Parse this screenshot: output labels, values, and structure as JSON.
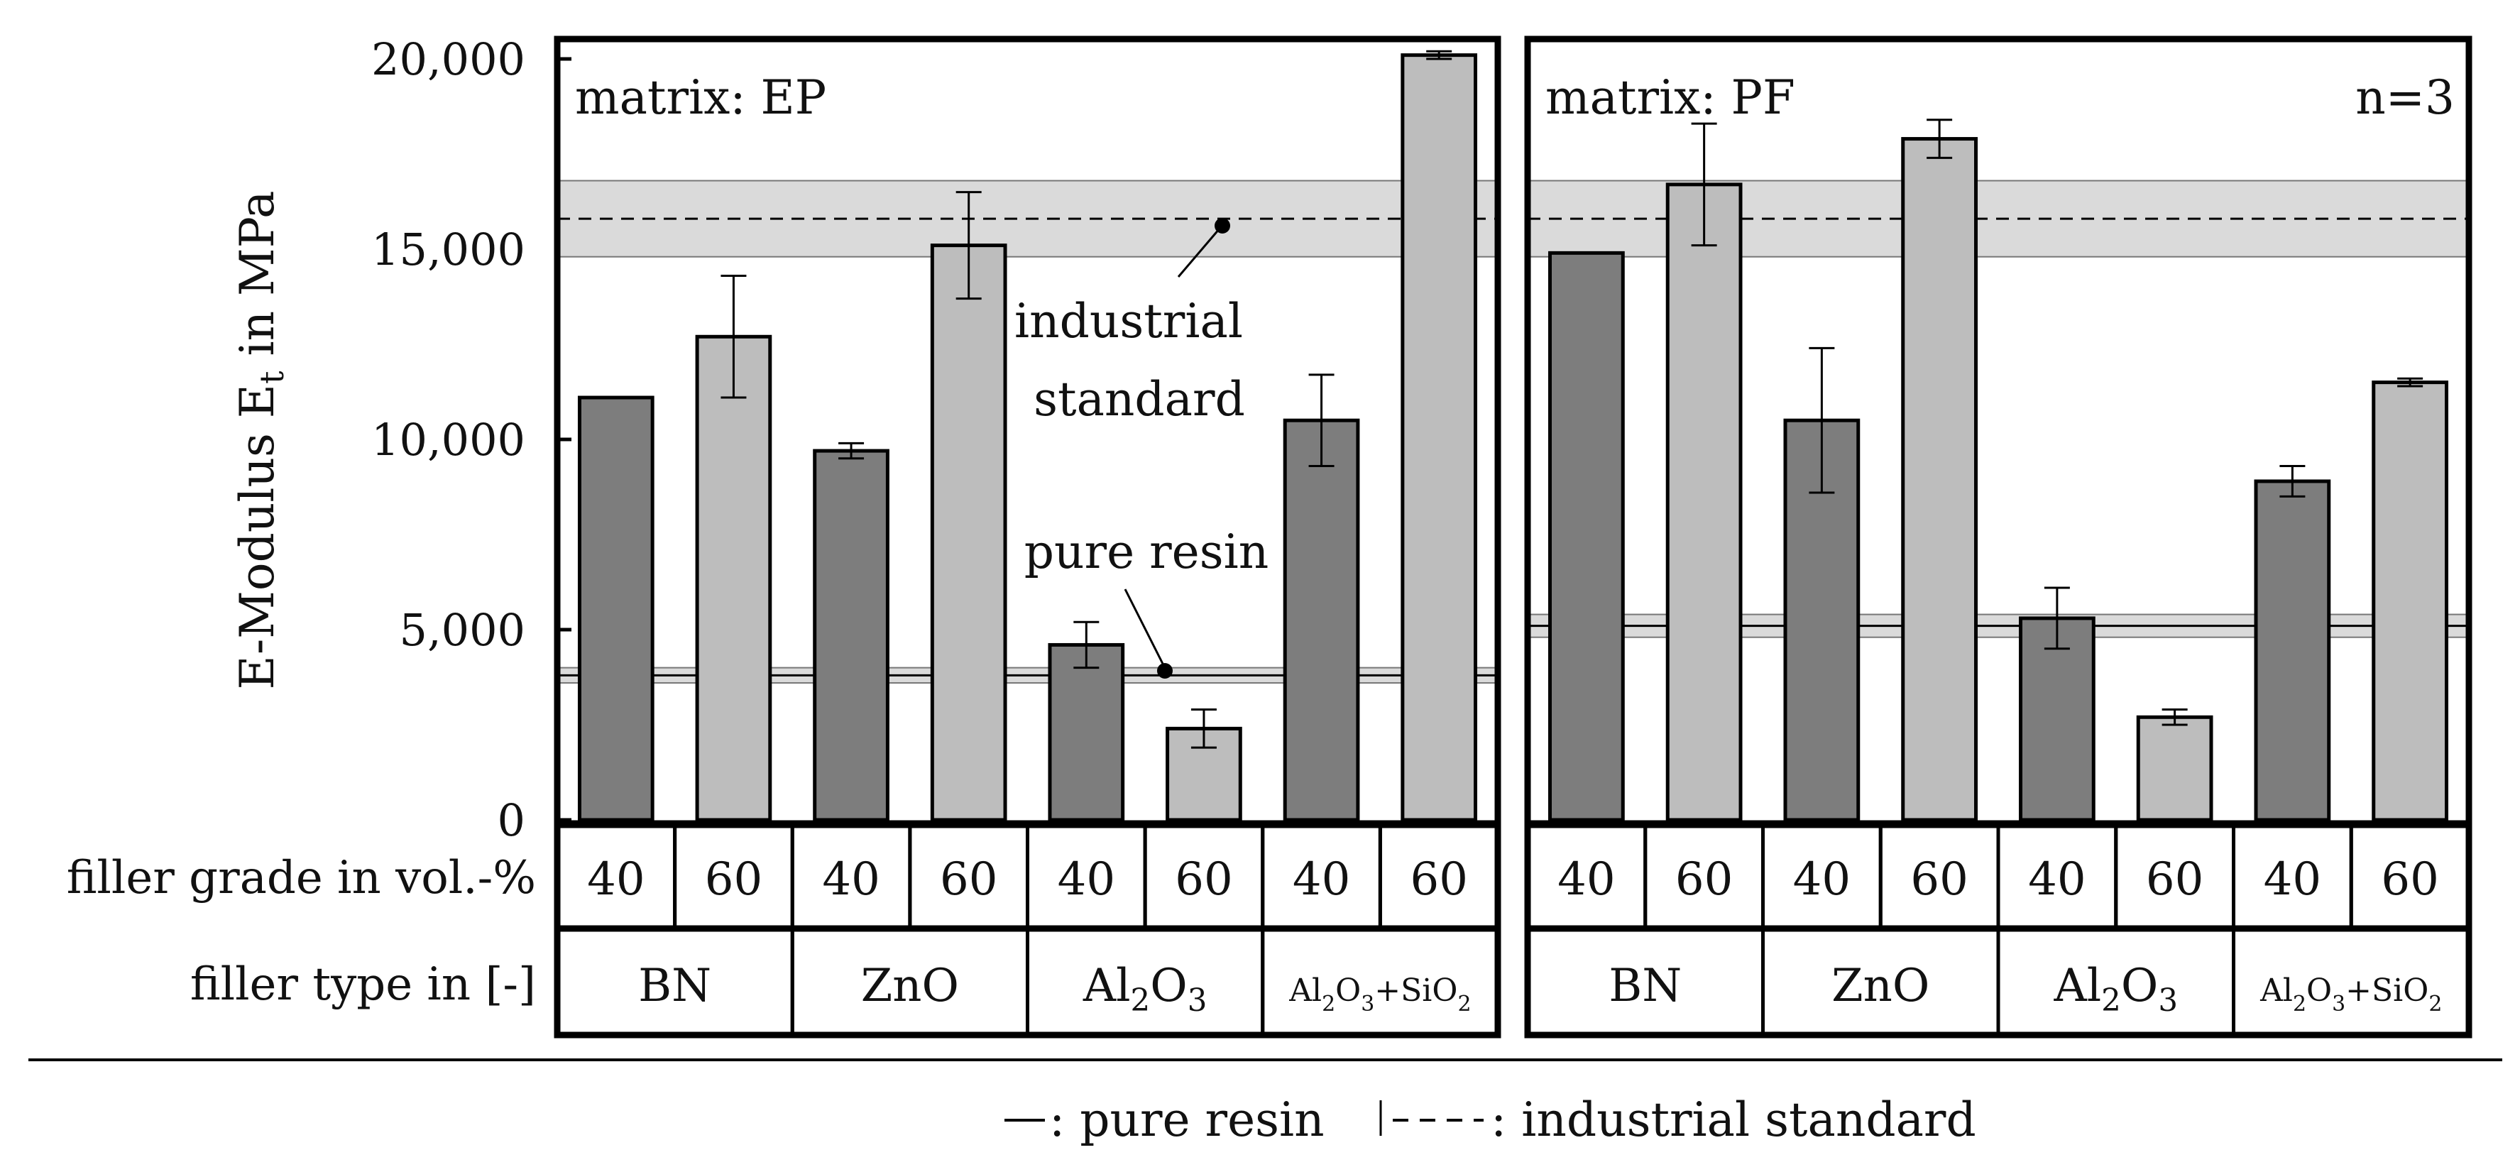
{
  "chart_data": {
    "type": "bar",
    "ylabel": "E-Modulus E",
    "ylabel_sub": "t",
    "ylabel_tail": " in MPa",
    "ylim": [
      0,
      20000
    ],
    "yticks": [
      "0",
      "5,000",
      "10,000",
      "15,000",
      "20,000"
    ],
    "ytick_values": [
      0,
      5000,
      10000,
      15000,
      20000
    ],
    "row_labels": {
      "grade": "filler grade in vol.-%",
      "type": "filler type in [-]"
    },
    "fillers": [
      {
        "name": "BN"
      },
      {
        "name": "ZnO"
      },
      {
        "name": "Al₂O₃",
        "parts": [
          "Al",
          "2",
          "O",
          "3"
        ]
      },
      {
        "name": "Al₂O₃+SiO₂",
        "parts": [
          "Al",
          "2",
          "O",
          "3",
          "+SiO",
          "2"
        ]
      }
    ],
    "grades": [
      "40",
      "60"
    ],
    "panels": [
      {
        "matrix_label": "matrix: EP",
        "values": [
          11100,
          12700,
          9700,
          15100,
          4600,
          2400,
          10500,
          20100
        ],
        "errors": [
          0,
          1600,
          200,
          1400,
          600,
          500,
          1200,
          100
        ],
        "pure_resin": {
          "mean": 3800,
          "lo": 3600,
          "hi": 4000
        },
        "industrial_standard": {
          "mean": 15800,
          "lo": 14800,
          "hi": 16800
        },
        "annotations": {
          "industrial": [
            "industrial",
            "standard"
          ],
          "pure": "pure resin"
        }
      },
      {
        "matrix_label": "matrix: PF",
        "n_label": "n=3",
        "values": [
          14900,
          16700,
          10500,
          17900,
          5300,
          2700,
          8900,
          11500
        ],
        "errors": [
          0,
          1600,
          1900,
          500,
          800,
          200,
          400,
          100
        ],
        "pure_resin": {
          "mean": 5100,
          "lo": 4800,
          "hi": 5400
        },
        "industrial_standard": {
          "mean": 15800,
          "lo": 14800,
          "hi": 16800
        }
      }
    ],
    "legend": {
      "pure_resin": ": pure resin",
      "industrial": ": industrial standard"
    },
    "colors": {
      "grade40": "#7d7d7d",
      "grade60": "#bdbdbd",
      "band": "#dadada",
      "frame": "#000000"
    }
  }
}
